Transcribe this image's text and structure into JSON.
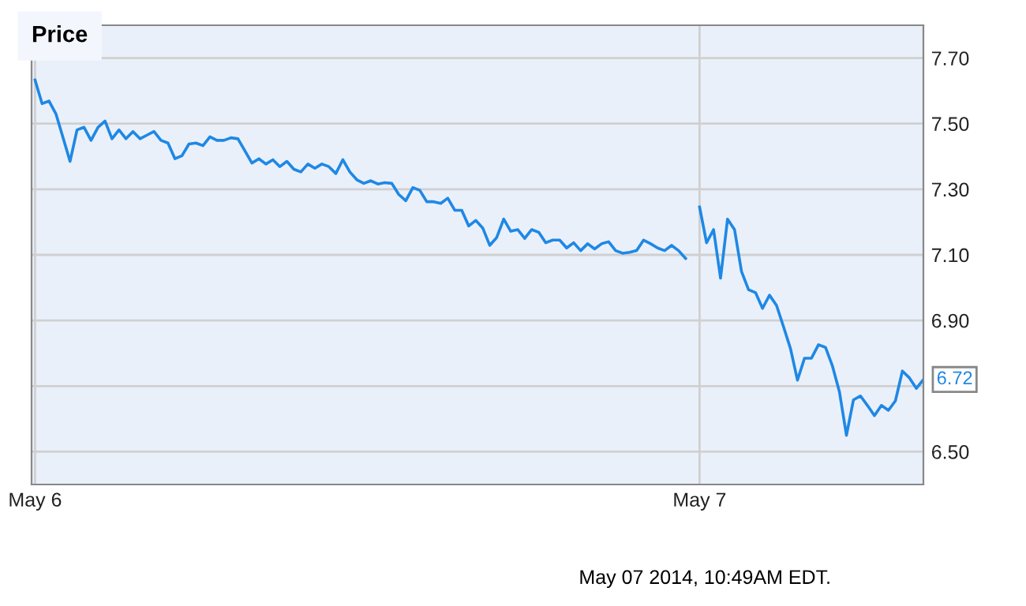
{
  "chart_data": {
    "type": "line",
    "title": "Price",
    "categories": [
      "May 6",
      null,
      null,
      null,
      null,
      null,
      null,
      null,
      null,
      null,
      null,
      null,
      null,
      null,
      null,
      null,
      null,
      null,
      null,
      null,
      null,
      null,
      null,
      null,
      null,
      null,
      null,
      null,
      null,
      null,
      null,
      null,
      null,
      null,
      null,
      null,
      null,
      null,
      null,
      null,
      null,
      null,
      null,
      null,
      null,
      null,
      null,
      null,
      null,
      null,
      null,
      null,
      null,
      null,
      null,
      null,
      null,
      null,
      null,
      null,
      null,
      null,
      null,
      null,
      null,
      null,
      null,
      null,
      null,
      null,
      null,
      null,
      null,
      null,
      null,
      null,
      null,
      null,
      null,
      null,
      null,
      null,
      null,
      null,
      null,
      null,
      null,
      null,
      null,
      null,
      null,
      null,
      null,
      null,
      null,
      "May 7",
      null,
      null,
      null,
      null,
      null,
      null,
      null,
      null,
      null,
      null,
      null,
      null,
      null,
      null,
      null,
      null,
      null,
      null,
      null,
      null,
      null,
      null,
      null,
      null,
      null,
      null,
      null,
      null,
      null,
      null,
      null,
      null
    ],
    "series": [
      {
        "color": "#1e88e5",
        "values": [
          7.633,
          7.561,
          7.569,
          7.529,
          7.457,
          7.385,
          7.481,
          7.489,
          7.449,
          7.489,
          7.508,
          7.454,
          7.481,
          7.454,
          7.476,
          7.454,
          7.465,
          7.476,
          7.449,
          7.441,
          7.393,
          7.402,
          7.438,
          7.441,
          7.433,
          7.46,
          7.449,
          7.449,
          7.457,
          7.454,
          7.417,
          7.38,
          7.393,
          7.377,
          7.39,
          7.369,
          7.385,
          7.361,
          7.353,
          7.377,
          7.364,
          7.377,
          7.369,
          7.348,
          7.39,
          7.353,
          7.329,
          7.318,
          7.326,
          7.316,
          7.32,
          7.318,
          7.284,
          7.265,
          7.305,
          7.297,
          7.262,
          7.262,
          7.257,
          7.273,
          7.236,
          7.236,
          7.188,
          7.205,
          7.182,
          7.129,
          7.153,
          7.209,
          7.172,
          7.177,
          7.15,
          7.177,
          7.169,
          7.137,
          7.145,
          7.145,
          7.121,
          7.137,
          7.113,
          7.134,
          7.118,
          7.134,
          7.14,
          7.113,
          7.105,
          7.108,
          7.113,
          7.145,
          7.134,
          7.121,
          7.113,
          7.129,
          7.113,
          7.089,
          null,
          7.246,
          7.137,
          7.177,
          7.029,
          7.209,
          7.177,
          7.049,
          6.994,
          6.985,
          6.937,
          6.977,
          6.946,
          6.881,
          6.814,
          6.718,
          6.785,
          6.785,
          6.826,
          6.818,
          6.761,
          6.682,
          6.55,
          6.658,
          6.67,
          6.641,
          6.61,
          6.641,
          6.626,
          6.655,
          6.746,
          6.725,
          6.693,
          6.72
        ],
        "value_labels": [
          null,
          null,
          null,
          null,
          null,
          null,
          null,
          null,
          null,
          null,
          null,
          null,
          null,
          null,
          null,
          null,
          null,
          null,
          null,
          null,
          null,
          null,
          null,
          null,
          null,
          null,
          null,
          null,
          null,
          null,
          null,
          null,
          null,
          null,
          null,
          null,
          null,
          null,
          null,
          null,
          null,
          null,
          null,
          null,
          null,
          null,
          null,
          null,
          null,
          null,
          null,
          null,
          null,
          null,
          null,
          null,
          null,
          null,
          null,
          null,
          null,
          null,
          null,
          null,
          null,
          null,
          null,
          null,
          null,
          null,
          null,
          null,
          null,
          null,
          null,
          null,
          null,
          null,
          null,
          null,
          null,
          null,
          null,
          null,
          null,
          null,
          null,
          null,
          null,
          null,
          null,
          null,
          null,
          null,
          null,
          null,
          null,
          null,
          null,
          null,
          null,
          null,
          null,
          null,
          null,
          null,
          null,
          null,
          null,
          null,
          null,
          null,
          null,
          null,
          null,
          null,
          null,
          null,
          null,
          null,
          null,
          null,
          null,
          null,
          null,
          null,
          null,
          "6.72"
        ]
      }
    ],
    "ylim": [
      6.4,
      7.8
    ],
    "yticks": [
      {
        "value": 6.5,
        "label": "6.50"
      },
      {
        "value": 6.7,
        "label": null
      },
      {
        "value": 6.9,
        "label": "6.90"
      },
      {
        "value": 7.1,
        "label": "7.10"
      },
      {
        "value": 7.3,
        "label": "7.30"
      },
      {
        "value": 7.5,
        "label": "7.50"
      },
      {
        "value": 7.7,
        "label": "7.70"
      }
    ],
    "grid": true,
    "annotations": [
      "May 07 2014, 10:49AM EDT."
    ]
  }
}
